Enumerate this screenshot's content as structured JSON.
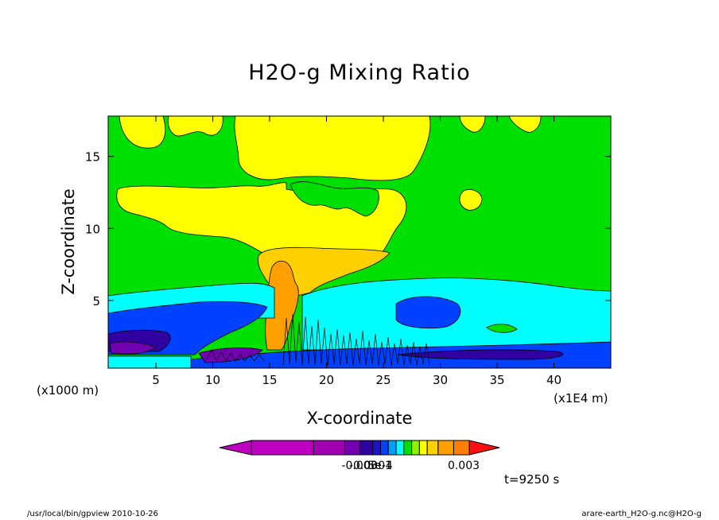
{
  "chart_data": {
    "type": "heatmap",
    "title": "H2O-g Mixing Ratio",
    "xlabel": "X-coordinate",
    "ylabel": "Z-coordinate",
    "x_unit": "(x1000 m)",
    "x_scale_label": "(x1E4 m)",
    "xlim": [
      0.8,
      45
    ],
    "ylim": [
      0.3,
      17.8
    ],
    "xticks": [
      5,
      10,
      15,
      20,
      25,
      30,
      35,
      40
    ],
    "yticks": [
      5,
      10,
      15
    ],
    "colorbar": {
      "colors": [
        "#c000c0",
        "#a000b0",
        "#7000b0",
        "#3000a0",
        "#2010d0",
        "#0040ff",
        "#00a0ff",
        "#00ffff",
        "#00e000",
        "#90f000",
        "#ffff00",
        "#ffd000",
        "#ffa000",
        "#ff8000",
        "#ff1010"
      ],
      "labels": [
        {
          "text": "-0.003",
          "value": -0.003
        },
        {
          "text": "-0.0001",
          "value": -0.0001
        },
        {
          "text": "5e-4",
          "value": 0.0005
        },
        {
          "text": "0.003",
          "value": 0.003
        }
      ]
    },
    "annotation": "t=9250 s"
  },
  "footer": {
    "left": "/usr/local/bin/gpview  2010-10-26",
    "right": "arare-earth_H2O-g.nc@H2O-g"
  },
  "colors": {
    "background": "#00e000",
    "yellow": "#ffff00",
    "gold": "#ffd000",
    "orange": "#ffa000",
    "cyan": "#00ffff",
    "blue": "#0040ff",
    "navy": "#3000a0",
    "purple": "#7000b0"
  }
}
